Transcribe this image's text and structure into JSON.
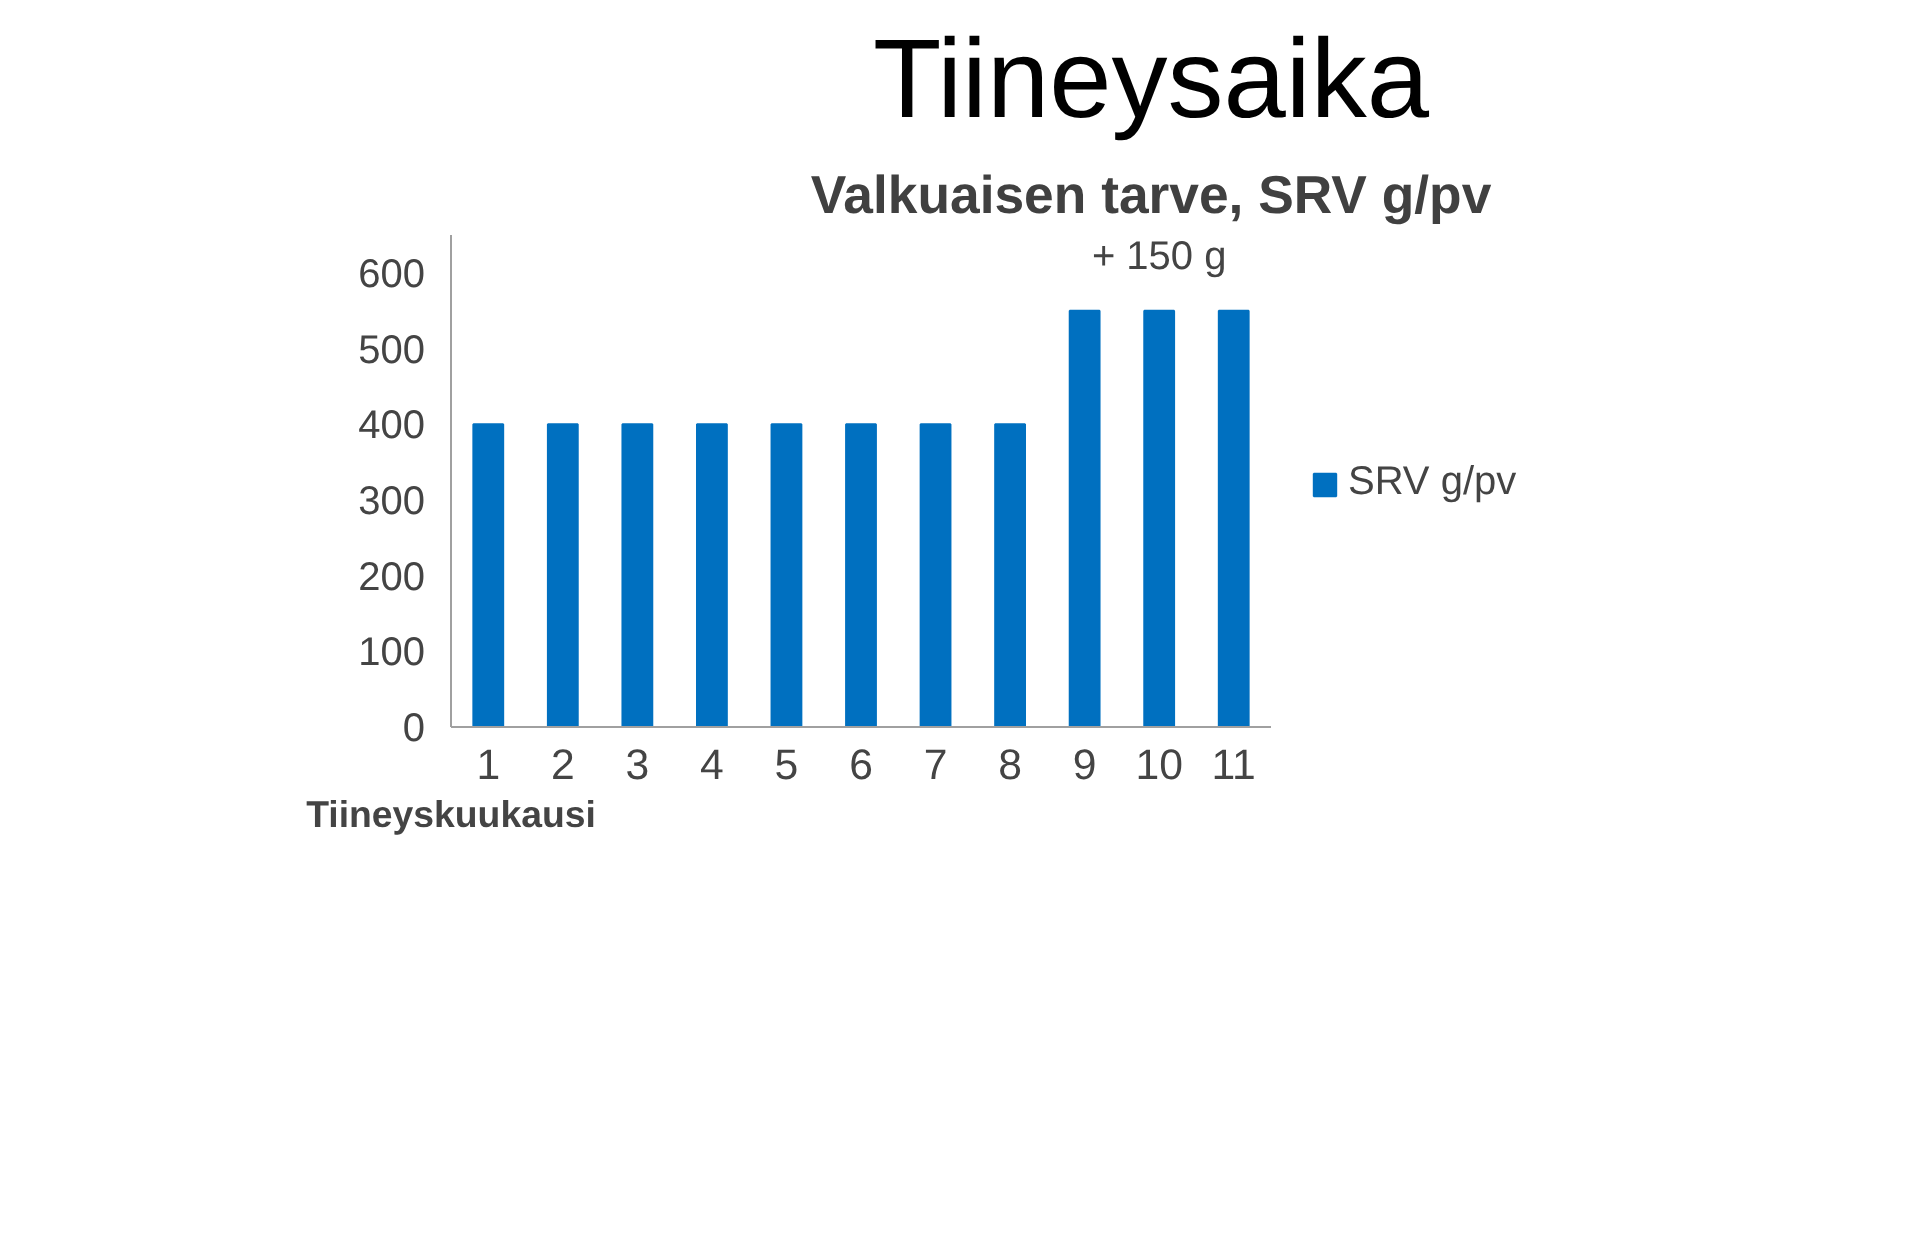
{
  "chart_data": {
    "type": "bar",
    "title": "Tiineysaika",
    "subtitle": "Valkuaisen tarve, SRV g/pv",
    "xlabel": "Tiineyskuukausi",
    "categories": [
      "1",
      "2",
      "3",
      "4",
      "5",
      "6",
      "7",
      "8",
      "9",
      "10",
      "11"
    ],
    "series": [
      {
        "name": "SRV g/pv",
        "color": "#0070c0",
        "values": [
          400,
          400,
          400,
          400,
          400,
          400,
          400,
          400,
          550,
          550,
          550
        ]
      }
    ],
    "ylim": [
      0,
      650
    ],
    "yticks": [
      0,
      100,
      200,
      300,
      400,
      500,
      600
    ],
    "grid": false,
    "legend": "right",
    "annotations": [
      "+ 150 g"
    ]
  }
}
